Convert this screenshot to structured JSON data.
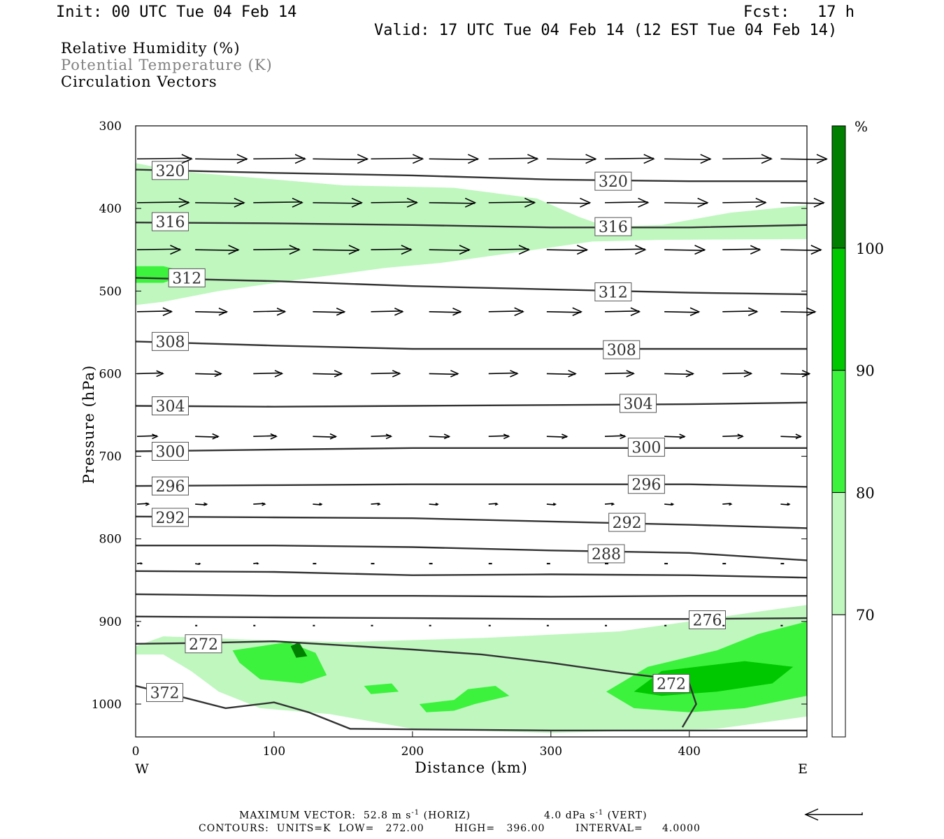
{
  "header": {
    "init": "Init: 00 UTC Tue 04 Feb 14",
    "fcst": "Fcst:   17 h",
    "valid": "Valid: 17 UTC Tue 04 Feb 14 (12 EST Tue 04 Feb 14)"
  },
  "fields": {
    "line1": "Relative Humidity (%)",
    "line2": "Potential Temperature (K)",
    "line3": "Circulation Vectors"
  },
  "footer": {
    "max_vector": "MAXIMUM VECTOR:  52.8 m s",
    "max_vector_exp1": "-1",
    "max_vector_horiz": " (HORIZ)",
    "vert": "4.0 dPa s",
    "vert_exp": "-1",
    "vert_tail": " (VERT)",
    "contours": "CONTOURS:  UNITS=K  LOW=   272.00        HIGH=   396.00        INTERVAL=     4.0000"
  },
  "colors": {
    "rh_70": "#bff7bf",
    "rh_80": "#3cf23c",
    "rh_90": "#00c800",
    "rh_100": "#007f00",
    "theta_line": "#333333",
    "vector": "#000000"
  },
  "chart_data": {
    "type": "cross-section",
    "xlabel": "Distance (km)",
    "ylabel": "Pressure (hPa)",
    "xlim": [
      0,
      485
    ],
    "ylim": [
      1040,
      300
    ],
    "x_ticks": [
      "0",
      "100",
      "200",
      "300",
      "400"
    ],
    "x_tick_values": [
      0,
      100,
      200,
      300,
      400
    ],
    "y_ticks": [
      "300",
      "400",
      "500",
      "600",
      "700",
      "800",
      "900",
      "1000"
    ],
    "y_tick_values": [
      300,
      400,
      500,
      600,
      700,
      800,
      900,
      1000
    ],
    "x_end_labels": {
      "left": "W",
      "right": "E"
    },
    "colorbar": {
      "unit": "%",
      "levels": [
        "70",
        "80",
        "90",
        "100"
      ],
      "level_values": [
        70,
        80,
        90,
        100
      ],
      "colors": [
        "#ffffff",
        "#bff7bf",
        "#3cf23c",
        "#00c800",
        "#007f00"
      ]
    },
    "theta_contours": [
      {
        "label": "320",
        "label_points": [
          [
            25,
            354
          ],
          [
            345,
            367
          ]
        ],
        "points": [
          [
            0,
            353
          ],
          [
            100,
            357
          ],
          [
            200,
            360
          ],
          [
            300,
            365
          ],
          [
            400,
            367
          ],
          [
            485,
            367
          ]
        ]
      },
      {
        "label": "316",
        "label_points": [
          [
            25,
            416
          ],
          [
            345,
            422
          ]
        ],
        "points": [
          [
            0,
            417
          ],
          [
            100,
            418
          ],
          [
            200,
            420
          ],
          [
            300,
            423
          ],
          [
            400,
            423
          ],
          [
            485,
            420
          ]
        ]
      },
      {
        "label": "312",
        "label_points": [
          [
            37,
            484
          ],
          [
            345,
            501
          ]
        ],
        "points": [
          [
            0,
            484
          ],
          [
            100,
            488
          ],
          [
            200,
            494
          ],
          [
            300,
            498
          ],
          [
            400,
            502
          ],
          [
            485,
            504
          ]
        ]
      },
      {
        "label": "308",
        "label_points": [
          [
            25,
            561
          ],
          [
            351,
            571
          ]
        ],
        "points": [
          [
            0,
            561
          ],
          [
            100,
            566
          ],
          [
            200,
            570
          ],
          [
            300,
            570
          ],
          [
            400,
            570
          ],
          [
            485,
            570
          ]
        ]
      },
      {
        "label": "304",
        "label_points": [
          [
            25,
            639
          ],
          [
            363,
            636
          ]
        ],
        "points": [
          [
            0,
            639
          ],
          [
            100,
            640
          ],
          [
            200,
            639
          ],
          [
            300,
            638
          ],
          [
            400,
            637
          ],
          [
            485,
            635
          ]
        ]
      },
      {
        "label": "300",
        "label_points": [
          [
            25,
            694
          ],
          [
            369,
            689
          ]
        ],
        "points": [
          [
            0,
            694
          ],
          [
            100,
            692
          ],
          [
            200,
            690
          ],
          [
            300,
            690
          ],
          [
            400,
            690
          ],
          [
            485,
            690
          ]
        ]
      },
      {
        "label": "296",
        "label_points": [
          [
            25,
            736
          ],
          [
            369,
            734
          ]
        ],
        "points": [
          [
            0,
            736
          ],
          [
            100,
            735
          ],
          [
            200,
            734
          ],
          [
            300,
            734
          ],
          [
            400,
            734
          ],
          [
            485,
            737
          ]
        ]
      },
      {
        "label": "292",
        "label_points": [
          [
            25,
            774
          ],
          [
            355,
            780
          ]
        ],
        "points": [
          [
            0,
            773
          ],
          [
            100,
            774
          ],
          [
            200,
            775
          ],
          [
            300,
            779
          ],
          [
            400,
            783
          ],
          [
            485,
            787
          ]
        ]
      },
      {
        "label": "288",
        "label_points": [
          [
            340,
            818
          ]
        ],
        "points": [
          [
            0,
            808
          ],
          [
            100,
            808
          ],
          [
            200,
            810
          ],
          [
            300,
            814
          ],
          [
            400,
            817
          ],
          [
            485,
            826
          ]
        ]
      },
      {
        "label": "",
        "label_points": [],
        "points": [
          [
            0,
            839
          ],
          [
            100,
            840
          ],
          [
            200,
            844
          ],
          [
            300,
            843
          ],
          [
            400,
            844
          ],
          [
            485,
            847
          ]
        ]
      },
      {
        "label": "",
        "label_points": [],
        "points": [
          [
            0,
            867
          ],
          [
            100,
            869
          ],
          [
            200,
            869
          ],
          [
            300,
            870
          ],
          [
            400,
            869
          ],
          [
            485,
            869
          ]
        ]
      },
      {
        "label": "276",
        "label_points": [
          [
            413,
            898
          ]
        ],
        "points": [
          [
            0,
            894
          ],
          [
            100,
            895
          ],
          [
            200,
            896
          ],
          [
            300,
            897
          ],
          [
            400,
            897
          ],
          [
            485,
            896
          ]
        ]
      },
      {
        "label": "272",
        "label_points": [
          [
            49,
            927
          ],
          [
            387,
            975
          ]
        ],
        "points": [
          [
            0,
            927
          ],
          [
            50,
            926
          ],
          [
            100,
            924
          ],
          [
            150,
            929
          ],
          [
            200,
            934
          ],
          [
            250,
            940
          ],
          [
            300,
            950
          ],
          [
            350,
            962
          ],
          [
            390,
            970
          ],
          [
            400,
            975
          ],
          [
            405,
            1000
          ],
          [
            395,
            1028
          ]
        ]
      },
      {
        "label": "372",
        "label_points": [
          [
            21,
            986
          ]
        ],
        "points": [
          [
            0,
            978
          ],
          [
            30,
            990
          ],
          [
            65,
            1005
          ],
          [
            100,
            998
          ],
          [
            125,
            1010
          ],
          [
            155,
            1030
          ],
          [
            300,
            1032
          ],
          [
            485,
            1032
          ]
        ]
      }
    ],
    "rh_regions": [
      {
        "level": 70,
        "outline": [
          [
            0,
            345
          ],
          [
            30,
            355
          ],
          [
            80,
            362
          ],
          [
            150,
            372
          ],
          [
            230,
            375
          ],
          [
            290,
            388
          ],
          [
            320,
            410
          ],
          [
            340,
            422
          ],
          [
            380,
            420
          ],
          [
            430,
            405
          ],
          [
            485,
            396
          ],
          [
            485,
            437
          ],
          [
            380,
            438
          ],
          [
            330,
            440
          ],
          [
            280,
            452
          ],
          [
            220,
            466
          ],
          [
            180,
            472
          ],
          [
            110,
            488
          ],
          [
            60,
            500
          ],
          [
            20,
            513
          ],
          [
            0,
            517
          ]
        ]
      },
      {
        "level": 80,
        "outline": [
          [
            0,
            470
          ],
          [
            20,
            470
          ],
          [
            40,
            478
          ],
          [
            20,
            490
          ],
          [
            0,
            490
          ]
        ]
      },
      {
        "level": 70,
        "outline": [
          [
            0,
            930
          ],
          [
            20,
            918
          ],
          [
            80,
            922
          ],
          [
            150,
            925
          ],
          [
            250,
            920
          ],
          [
            350,
            912
          ],
          [
            450,
            888
          ],
          [
            485,
            880
          ],
          [
            485,
            1015
          ],
          [
            420,
            1030
          ],
          [
            300,
            1035
          ],
          [
            200,
            1030
          ],
          [
            140,
            1012
          ],
          [
            90,
            1005
          ],
          [
            60,
            985
          ],
          [
            40,
            960
          ],
          [
            20,
            940
          ],
          [
            0,
            940
          ]
        ]
      },
      {
        "level": 80,
        "outline": [
          [
            70,
            935
          ],
          [
            110,
            925
          ],
          [
            130,
            938
          ],
          [
            138,
            965
          ],
          [
            120,
            975
          ],
          [
            90,
            970
          ],
          [
            75,
            950
          ]
        ]
      },
      {
        "level": 80,
        "outline": [
          [
            340,
            985
          ],
          [
            370,
            955
          ],
          [
            420,
            935
          ],
          [
            450,
            915
          ],
          [
            485,
            900
          ],
          [
            485,
            990
          ],
          [
            440,
            1005
          ],
          [
            400,
            1010
          ],
          [
            360,
            1005
          ]
        ]
      },
      {
        "level": 90,
        "outline": [
          [
            360,
            985
          ],
          [
            380,
            960
          ],
          [
            440,
            948
          ],
          [
            475,
            955
          ],
          [
            460,
            975
          ],
          [
            420,
            985
          ],
          [
            380,
            990
          ]
        ]
      },
      {
        "level": 80,
        "outline": [
          [
            165,
            978
          ],
          [
            185,
            975
          ],
          [
            190,
            985
          ],
          [
            170,
            988
          ]
        ]
      },
      {
        "level": 80,
        "outline": [
          [
            205,
            1000
          ],
          [
            230,
            995
          ],
          [
            240,
            982
          ],
          [
            260,
            978
          ],
          [
            270,
            990
          ],
          [
            245,
            1000
          ],
          [
            230,
            1008
          ],
          [
            210,
            1010
          ]
        ]
      },
      {
        "level": 100,
        "outline": [
          [
            112,
            930
          ],
          [
            118,
            925
          ],
          [
            124,
            942
          ],
          [
            116,
            944
          ]
        ]
      }
    ],
    "vectors": {
      "max_horiz_m_s": 52.8,
      "max_vert_dPa_s": 4.0,
      "x": [
        0,
        42,
        84,
        127,
        169,
        211,
        254,
        296,
        338,
        381,
        423,
        465
      ],
      "rows": [
        {
          "p": 340,
          "len": [
            0.95,
            0.9,
            0.9,
            0.95,
            0.9,
            0.85,
            0.85,
            0.85,
            0.85,
            0.8,
            0.85,
            0.8
          ]
        },
        {
          "p": 393,
          "len": [
            0.9,
            0.85,
            0.85,
            0.85,
            0.8,
            0.8,
            0.8,
            0.75,
            0.75,
            0.75,
            0.75,
            0.75
          ]
        },
        {
          "p": 450,
          "len": [
            0.75,
            0.75,
            0.8,
            0.8,
            0.7,
            0.7,
            0.7,
            0.7,
            0.7,
            0.7,
            0.65,
            0.7
          ]
        },
        {
          "p": 525,
          "len": [
            0.6,
            0.55,
            0.55,
            0.55,
            0.55,
            0.55,
            0.6,
            0.6,
            0.6,
            0.6,
            0.6,
            0.6
          ]
        },
        {
          "p": 600,
          "len": [
            0.45,
            0.45,
            0.5,
            0.5,
            0.5,
            0.5,
            0.5,
            0.5,
            0.5,
            0.5,
            0.5,
            0.5
          ]
        },
        {
          "p": 676,
          "len": [
            0.35,
            0.4,
            0.4,
            0.4,
            0.35,
            0.35,
            0.35,
            0.35,
            0.35,
            0.35,
            0.35,
            0.35
          ]
        },
        {
          "p": 758,
          "len": [
            0.2,
            0.2,
            0.2,
            0.15,
            0.15,
            0.15,
            0.15,
            0.15,
            0.15,
            0.15,
            0.15,
            0.15
          ]
        },
        {
          "p": 830,
          "len": [
            0.08,
            0.08,
            0.08,
            0.06,
            0.06,
            0.06,
            0.06,
            0.06,
            0.06,
            0.06,
            0.06,
            0.06
          ]
        },
        {
          "p": 905,
          "len": [
            0.03,
            0.03,
            0.03,
            0.03,
            0.03,
            0.03,
            0.03,
            0.03,
            0.03,
            0.03,
            0.03,
            0.03
          ]
        }
      ]
    }
  }
}
